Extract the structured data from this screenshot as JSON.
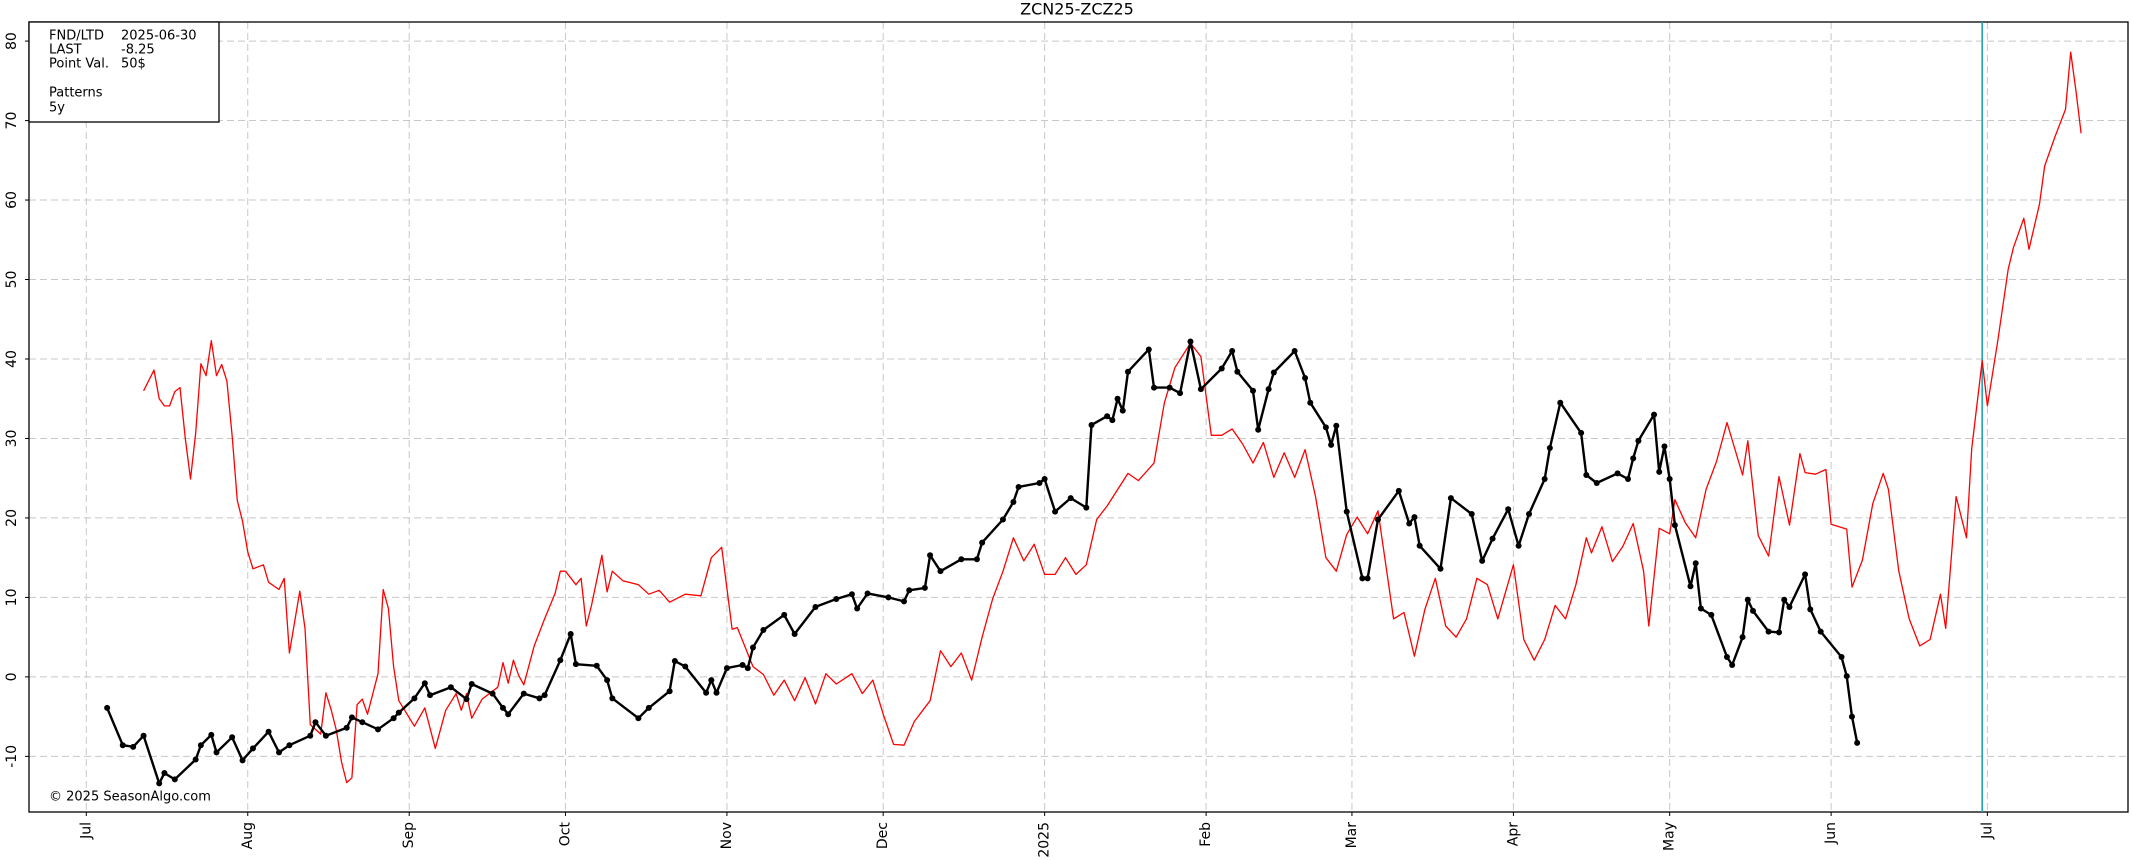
{
  "chart_data": {
    "type": "line",
    "title": "ZCN25-ZCZ25",
    "info": [
      {
        "label": "FND/LTD",
        "value": "2025-06-30"
      },
      {
        "label": "LAST",
        "value": "-8.25"
      },
      {
        "label": "Point Val.",
        "value": "50$"
      }
    ],
    "legend_title": "Patterns",
    "credit": "© 2025 SeasonAlgo.com",
    "xlim": [
      -11,
      392
    ],
    "ylim": [
      -17,
      82.4
    ],
    "xticks": [
      {
        "value": 0,
        "label": "Jul"
      },
      {
        "value": 31,
        "label": "Aug"
      },
      {
        "value": 62,
        "label": "Sep"
      },
      {
        "value": 92,
        "label": "Oct"
      },
      {
        "value": 123,
        "label": "Nov"
      },
      {
        "value": 153,
        "label": "Dec"
      },
      {
        "value": 184,
        "label": "2025"
      },
      {
        "value": 215,
        "label": "Feb"
      },
      {
        "value": 243,
        "label": "Mar"
      },
      {
        "value": 274,
        "label": "Apr"
      },
      {
        "value": 304,
        "label": "May"
      },
      {
        "value": 335,
        "label": "Jun"
      },
      {
        "value": 365,
        "label": "Jul"
      }
    ],
    "yticks": [
      -10,
      0,
      10,
      20,
      30,
      40,
      50,
      60,
      70,
      80
    ],
    "grid": true,
    "vline": {
      "x": 364,
      "color": "#1fa3b5"
    },
    "series": [
      {
        "color": "#000000",
        "markers": true,
        "x": [
          4,
          7,
          9,
          11,
          14,
          15,
          17,
          21,
          22,
          24,
          25,
          28,
          30,
          32,
          35,
          37,
          39,
          43,
          44,
          46,
          50,
          51,
          53,
          56,
          59,
          60,
          63,
          65,
          66,
          70,
          73,
          74,
          78,
          80,
          81,
          84,
          87,
          88,
          91,
          93,
          94,
          98,
          100,
          101,
          106,
          108,
          112,
          113,
          115,
          119,
          120,
          121,
          123,
          126,
          127,
          128,
          130,
          134,
          136,
          140,
          144,
          147,
          148,
          150,
          154,
          157,
          158,
          161,
          162,
          164,
          168,
          171,
          172,
          176,
          178,
          179,
          183,
          184,
          186,
          189,
          192,
          193,
          196,
          197,
          198,
          199,
          200,
          204,
          205,
          208,
          210,
          212,
          214,
          218,
          220,
          221,
          224,
          225,
          227,
          228,
          232,
          234,
          235,
          238,
          239,
          240,
          242,
          245,
          246,
          248,
          252,
          254,
          255,
          256,
          260,
          262,
          266,
          268,
          270,
          273,
          275,
          277,
          280,
          281,
          283,
          287,
          288,
          290,
          294,
          296,
          297,
          298,
          301,
          302,
          303,
          304,
          305,
          308,
          309,
          310,
          312,
          315,
          316,
          318,
          319,
          320,
          323,
          325,
          326,
          327,
          330,
          331,
          333,
          337,
          338,
          339,
          340
        ],
        "values": [
          -3.9,
          -8.6,
          -8.8,
          -7.4,
          -13.4,
          -12.1,
          -12.9,
          -10.4,
          -8.6,
          -7.3,
          -9.5,
          -7.6,
          -10.5,
          -9.0,
          -6.9,
          -9.5,
          -8.6,
          -7.4,
          -5.7,
          -7.4,
          -6.4,
          -5.1,
          -5.7,
          -6.6,
          -5.2,
          -4.5,
          -2.7,
          -0.8,
          -2.3,
          -1.3,
          -2.8,
          -0.9,
          -2.1,
          -3.9,
          -4.7,
          -2.1,
          -2.7,
          -2.3,
          2.1,
          5.4,
          1.6,
          1.4,
          -0.4,
          -2.7,
          -5.2,
          -3.9,
          -1.8,
          2.0,
          1.3,
          -2.0,
          -0.4,
          -2.0,
          1.1,
          1.5,
          1.1,
          3.7,
          5.9,
          7.8,
          5.4,
          8.8,
          9.8,
          10.4,
          8.6,
          10.5,
          10.0,
          9.5,
          10.9,
          11.2,
          15.3,
          13.3,
          14.8,
          14.8,
          16.9,
          19.8,
          22.0,
          23.9,
          24.4,
          24.9,
          20.8,
          22.5,
          21.3,
          31.7,
          32.8,
          32.3,
          35.0,
          33.5,
          38.4,
          41.2,
          36.4,
          36.4,
          35.7,
          42.2,
          36.2,
          38.8,
          41.0,
          38.4,
          36.0,
          31.1,
          36.2,
          38.3,
          41.0,
          37.6,
          34.5,
          31.4,
          29.2,
          31.6,
          20.8,
          12.4,
          12.4,
          19.8,
          23.4,
          19.3,
          20.1,
          16.5,
          13.6,
          22.5,
          20.5,
          14.6,
          17.4,
          21.1,
          16.5,
          20.5,
          24.9,
          28.8,
          34.5,
          30.7,
          25.4,
          24.4,
          25.6,
          24.9,
          27.5,
          29.7,
          33.0,
          25.8,
          29.0,
          24.9,
          19.1,
          11.4,
          14.3,
          8.6,
          7.8,
          2.5,
          1.5,
          5.0,
          9.7,
          8.3,
          5.7,
          5.6,
          9.7,
          8.8,
          12.9,
          8.5,
          5.7,
          2.5,
          0.1,
          -5.0,
          -8.3
        ]
      },
      {
        "name": "5y",
        "color": "#ff0000",
        "markers": false,
        "x": [
          11,
          13,
          14,
          15,
          16,
          17,
          18,
          19,
          20,
          21,
          22,
          23,
          24,
          25,
          26,
          27,
          28,
          29,
          30,
          31,
          32,
          34,
          35,
          37,
          38,
          39,
          41,
          42,
          43,
          45,
          46,
          47,
          48,
          49,
          50,
          51,
          52,
          53,
          54,
          56,
          57,
          58,
          59,
          60,
          63,
          65,
          67,
          69,
          71,
          72,
          73,
          74,
          76,
          79,
          80,
          81,
          82,
          83,
          84,
          86,
          88,
          90,
          91,
          92,
          94,
          95,
          96,
          97,
          99,
          100,
          101,
          103,
          106,
          108,
          110,
          112,
          115,
          118,
          120,
          122,
          124,
          125,
          128,
          130,
          132,
          134,
          136,
          138,
          140,
          142,
          144,
          147,
          149,
          151,
          153,
          155,
          157,
          159,
          162,
          164,
          166,
          168,
          170,
          172,
          174,
          176,
          178,
          180,
          182,
          184,
          186,
          188,
          190,
          192,
          194,
          196,
          200,
          202,
          205,
          207,
          209,
          212,
          214,
          216,
          218,
          220,
          222,
          224,
          226,
          228,
          230,
          232,
          234,
          236,
          238,
          240,
          242,
          244,
          246,
          248,
          251,
          253,
          255,
          257,
          259,
          261,
          263,
          265,
          267,
          269,
          271,
          274,
          276,
          278,
          280,
          282,
          284,
          286,
          288,
          289,
          291,
          293,
          295,
          297,
          299,
          300,
          302,
          304,
          305,
          307,
          309,
          311,
          313,
          315,
          318,
          319,
          321,
          323,
          325,
          327,
          329,
          330,
          332,
          334,
          335,
          338,
          339,
          341,
          343,
          345,
          346,
          348,
          350,
          352,
          354,
          356,
          357,
          359,
          361,
          362,
          364,
          365,
          367,
          369,
          370,
          372,
          373,
          375,
          376,
          378,
          380,
          381,
          382,
          383
        ],
        "values": [
          36.0,
          38.6,
          35.0,
          34.1,
          34.1,
          35.9,
          36.4,
          30.0,
          24.9,
          30.7,
          39.4,
          37.9,
          42.3,
          37.9,
          39.3,
          37.2,
          30.4,
          22.2,
          19.6,
          15.7,
          13.6,
          14.1,
          11.9,
          11.0,
          12.4,
          3.0,
          10.8,
          6.1,
          -6.0,
          -7.2,
          -2.0,
          -4.1,
          -6.7,
          -10.7,
          -13.3,
          -12.7,
          -3.5,
          -2.8,
          -4.7,
          0.4,
          11.0,
          8.6,
          1.3,
          -3.0,
          -6.2,
          -3.9,
          -9.0,
          -4.2,
          -2.1,
          -4.2,
          -2.1,
          -5.2,
          -2.8,
          -1.3,
          1.8,
          -0.8,
          2.1,
          0.2,
          -1.0,
          3.9,
          7.3,
          10.5,
          13.3,
          13.3,
          11.6,
          12.4,
          6.4,
          9.0,
          15.3,
          10.7,
          13.3,
          12.1,
          11.6,
          10.4,
          10.9,
          9.4,
          10.4,
          10.2,
          15.0,
          16.3,
          6.0,
          6.2,
          1.3,
          0.3,
          -2.3,
          -0.4,
          -3.0,
          -0.1,
          -3.4,
          0.4,
          -0.9,
          0.4,
          -2.1,
          -0.4,
          -4.7,
          -8.5,
          -8.6,
          -5.6,
          -3.0,
          3.3,
          1.3,
          3.0,
          -0.4,
          5.0,
          9.8,
          13.3,
          17.5,
          14.6,
          16.7,
          12.9,
          12.9,
          15.0,
          12.9,
          14.1,
          19.8,
          21.5,
          25.6,
          24.7,
          26.9,
          34.5,
          38.9,
          42.0,
          40.3,
          30.4,
          30.4,
          31.2,
          29.3,
          26.9,
          29.5,
          25.1,
          28.2,
          25.1,
          28.6,
          22.7,
          15.0,
          13.3,
          17.9,
          20.1,
          18.0,
          20.9,
          7.3,
          8.1,
          2.6,
          8.5,
          12.4,
          6.4,
          5.0,
          7.3,
          12.4,
          11.6,
          7.3,
          14.1,
          4.7,
          2.1,
          4.7,
          9.0,
          7.3,
          11.6,
          17.5,
          15.6,
          18.9,
          14.5,
          16.4,
          19.3,
          13.3,
          6.4,
          18.7,
          18.0,
          22.3,
          19.4,
          17.5,
          23.6,
          27.1,
          32.0,
          25.4,
          29.7,
          17.8,
          15.2,
          25.2,
          19.1,
          28.1,
          25.7,
          25.5,
          26.1,
          19.2,
          18.6,
          11.3,
          14.7,
          21.8,
          25.6,
          23.6,
          13.3,
          7.3,
          3.9,
          4.7,
          10.4,
          6.1,
          22.7,
          17.5,
          28.7,
          39.8,
          34.1,
          42.3,
          51.3,
          54.0,
          57.7,
          53.8,
          59.5,
          64.3,
          68.0,
          71.4,
          78.6,
          73.8,
          68.4
        ]
      }
    ]
  }
}
